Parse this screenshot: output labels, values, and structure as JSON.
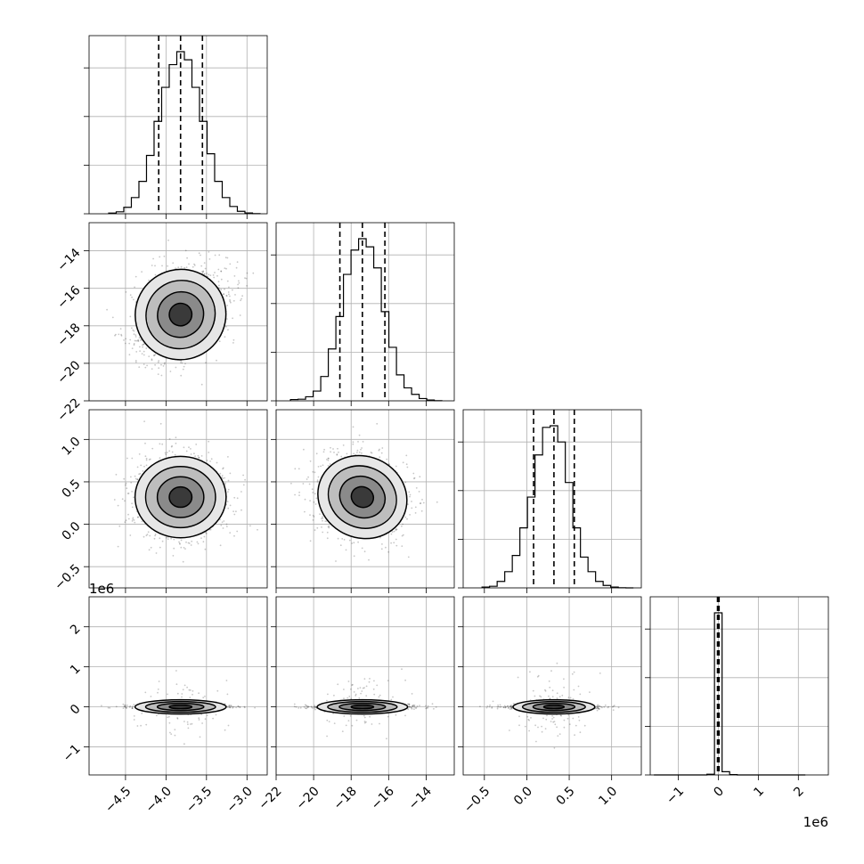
{
  "chart_data": {
    "type": "corner",
    "title": "",
    "grid": true,
    "parameters": [
      {
        "id": "p1",
        "range": [
          -4.95,
          -2.75
        ],
        "ticks": [
          -4.5,
          -4.0,
          -3.5,
          -3.0
        ],
        "tick_labels": [
          "−4.5",
          "−4.0",
          "−3.5",
          "−3.0"
        ],
        "mean": -3.82,
        "sigma": 0.28,
        "quantiles": [
          -4.09,
          -3.82,
          -3.55
        ],
        "hist_bins": [
          0.004,
          0.012,
          0.04,
          0.1,
          0.2,
          0.36,
          0.57,
          0.78,
          0.92,
          1.0,
          0.95,
          0.78,
          0.57,
          0.37,
          0.2,
          0.1,
          0.045,
          0.015,
          0.005,
          0.001
        ],
        "offset_text": ""
      },
      {
        "id": "p2",
        "range": [
          -22.0,
          -12.5
        ],
        "ticks": [
          -22,
          -20,
          -18,
          -16,
          -14
        ],
        "tick_labels": [
          "−22",
          "−20",
          "−18",
          "−16",
          "−14"
        ],
        "mean": -17.4,
        "sigma": 1.2,
        "quantiles": [
          -18.6,
          -17.4,
          -16.2
        ],
        "hist_bins": [
          0.008,
          0.01,
          0.025,
          0.06,
          0.15,
          0.32,
          0.52,
          0.78,
          0.93,
          1.0,
          0.95,
          0.82,
          0.55,
          0.33,
          0.16,
          0.08,
          0.04,
          0.014,
          0.005,
          0.001
        ],
        "offset_text": ""
      },
      {
        "id": "p3",
        "range": [
          -0.75,
          1.35
        ],
        "ticks": [
          -0.5,
          0.0,
          0.5,
          1.0
        ],
        "tick_labels": [
          "−0.5",
          "0.0",
          "0.5",
          "1.0"
        ],
        "mean": 0.32,
        "sigma": 0.24,
        "quantiles": [
          0.08,
          0.32,
          0.56
        ],
        "hist_bins": [
          0.005,
          0.01,
          0.04,
          0.1,
          0.2,
          0.37,
          0.56,
          0.82,
          0.99,
          1.0,
          0.9,
          0.65,
          0.37,
          0.19,
          0.1,
          0.04,
          0.015,
          0.005,
          0.001,
          0.0
        ],
        "offset_text": ""
      },
      {
        "id": "p4",
        "range": [
          -1.7,
          2.75
        ],
        "ticks": [
          -1,
          0,
          1,
          2
        ],
        "tick_labels": [
          "−1",
          "0",
          "1",
          "2"
        ],
        "mean": 0.0,
        "sigma": 0.04,
        "quantiles": [
          -0.02,
          0.0,
          0.02
        ],
        "hist_bins": [
          0.0,
          0.0,
          0.0,
          0.0,
          0.0,
          0.0,
          0.0,
          0.004,
          1.0,
          0.02,
          0.002,
          0.0,
          0.0,
          0.0,
          0.0,
          0.0,
          0.0,
          0.0,
          0.0,
          0.0
        ],
        "offset_text": "1e6"
      }
    ],
    "pairs": [
      {
        "x": 0,
        "y": 1,
        "correlation": 0.3
      },
      {
        "x": 0,
        "y": 2,
        "correlation": 0.0
      },
      {
        "x": 1,
        "y": 2,
        "correlation": -0.2
      },
      {
        "x": 0,
        "y": 3,
        "correlation": 0.0
      },
      {
        "x": 1,
        "y": 3,
        "correlation": 0.0
      },
      {
        "x": 2,
        "y": 3,
        "correlation": 0.0
      }
    ],
    "contour_levels_sigma": [
      0.5,
      1.0,
      1.5,
      2.0
    ]
  }
}
